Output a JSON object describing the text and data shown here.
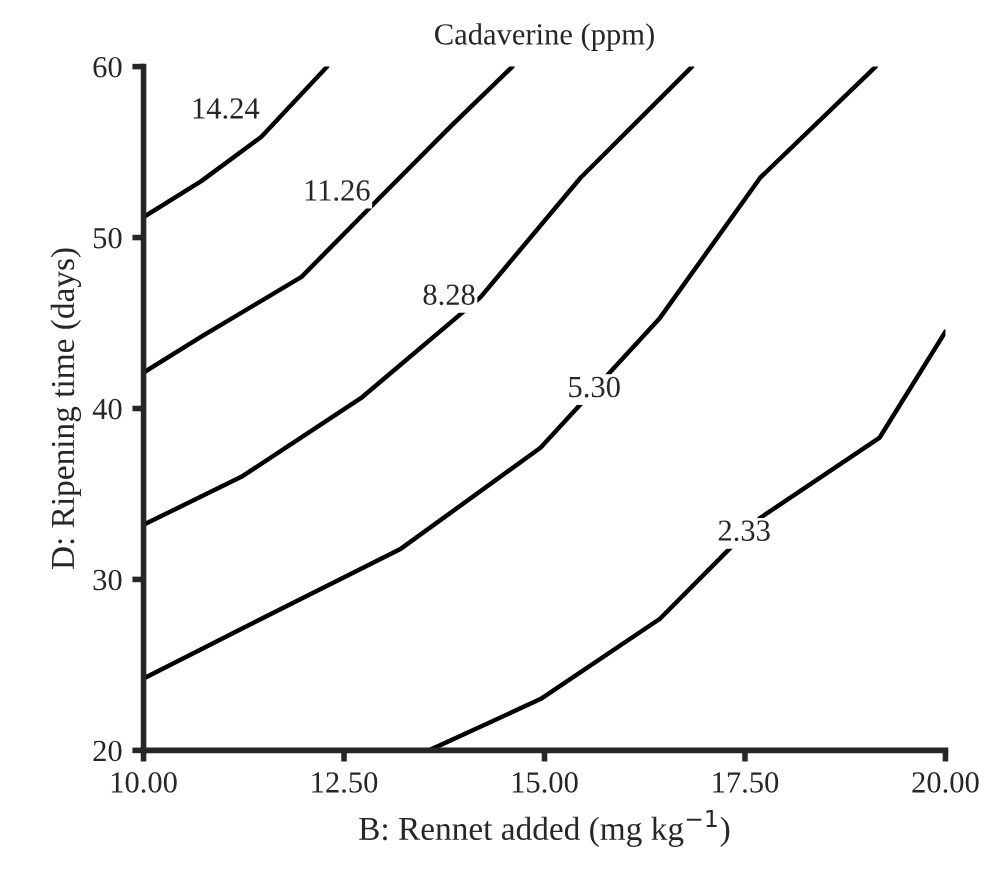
{
  "chart_data": {
    "type": "line",
    "title": "Cadaverine (ppm)",
    "xlabel": "B: Rennet added (mg kg$^{−1}$)",
    "ylabel": "D: Ripening time (days)",
    "series": [
      {
        "color": "#000000",
        "x": [
          10,
          10.72,
          11.47,
          12.29
        ],
        "values": [
          51.2,
          53.3,
          55.9,
          60
        ]
      },
      {
        "color": "#000000",
        "x": [
          10,
          10.72,
          11.97,
          12.96,
          13.83,
          14.6
        ],
        "values": [
          42.1,
          44.2,
          47.7,
          52.4,
          56.5,
          60
        ]
      },
      {
        "color": "#000000",
        "x": [
          10,
          11.22,
          12.71,
          14.2,
          15.45,
          16.84
        ],
        "values": [
          33.2,
          36.0,
          40.6,
          46.5,
          53.5,
          60
        ]
      },
      {
        "color": "#000000",
        "x": [
          10,
          11.47,
          13.21,
          14.95,
          16.44,
          17.69,
          19.13
        ],
        "values": [
          24.2,
          27.7,
          31.8,
          37.7,
          45.3,
          53.5,
          60
        ]
      },
      {
        "color": "#000000",
        "x": [
          13.56,
          14.95,
          16.44,
          17.69,
          19.18,
          20
        ],
        "values": [
          20,
          23.0,
          27.7,
          33.6,
          38.3,
          44.5
        ]
      }
    ],
    "annotations": [
      {
        "text": "14.24",
        "x": 11.02,
        "y": 57.4
      },
      {
        "text": "11.26",
        "x": 12.41,
        "y": 52.6
      },
      {
        "text": "8.28",
        "x": 13.81,
        "y": 46.5
      },
      {
        "text": "5.30",
        "x": 15.62,
        "y": 41.1
      },
      {
        "text": "2.33",
        "x": 17.49,
        "y": 32.7
      }
    ],
    "xlim": [
      10,
      20
    ],
    "ylim": [
      20,
      60
    ],
    "xticks": [
      {
        "value": 10,
        "label": "10.00"
      },
      {
        "value": 12.5,
        "label": "12.50"
      },
      {
        "value": 15,
        "label": "15.00"
      },
      {
        "value": 17.5,
        "label": "17.50"
      },
      {
        "value": 20,
        "label": "20.00"
      }
    ],
    "yticks": [
      20,
      30,
      40,
      50,
      60
    ],
    "grid": false,
    "line_style": "solid",
    "marker": "none"
  }
}
